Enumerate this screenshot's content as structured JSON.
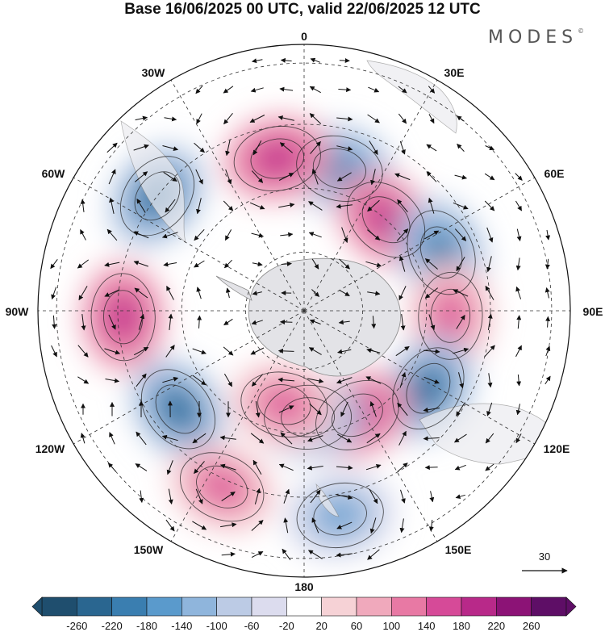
{
  "title": "Base 16/06/2025 00 UTC, valid 22/06/2025 12 UTC",
  "brand": "MODES",
  "brand_mark": "©",
  "longitude_labels": {
    "0": "0",
    "30E": "30E",
    "60E": "60E",
    "90E": "90E",
    "120E": "120E",
    "150E": "150E",
    "180": "180",
    "150W": "150W",
    "120W": "120W",
    "90W": "90W",
    "60W": "60W",
    "30W": "30W"
  },
  "vector_legend": {
    "value": "30"
  },
  "colorbar": {
    "ticks": [
      "-260",
      "-220",
      "-180",
      "-140",
      "-100",
      "-60",
      "-20",
      "20",
      "60",
      "100",
      "140",
      "180",
      "220",
      "260"
    ],
    "colors": [
      "#1f4e6e",
      "#2a6690",
      "#3a7eb0",
      "#5a9acc",
      "#8fb5dc",
      "#bccbe5",
      "#dcdcee",
      "#ffffff",
      "#f6d2d6",
      "#f0a9bc",
      "#e879a4",
      "#d64a98",
      "#b82989",
      "#8c1376",
      "#5e0e66"
    ]
  },
  "anomaly_centers": [
    {
      "lon": 14,
      "rad": 0.55,
      "value": -200
    },
    {
      "lon": -10,
      "rad": 0.58,
      "value": 190
    },
    {
      "lon": 42,
      "rad": 0.46,
      "value": 200
    },
    {
      "lon": 67,
      "rad": 0.56,
      "value": -220
    },
    {
      "lon": -52,
      "rad": 0.7,
      "value": -240
    },
    {
      "lon": 92,
      "rad": 0.55,
      "value": 150
    },
    {
      "lon": -92,
      "rad": 0.68,
      "value": 200
    },
    {
      "lon": 122,
      "rad": 0.55,
      "value": -240
    },
    {
      "lon": 153,
      "rad": 0.44,
      "value": 200
    },
    {
      "lon": 178,
      "rad": 0.4,
      "value": -200
    },
    {
      "lon": -168,
      "rad": 0.36,
      "value": 150
    },
    {
      "lon": -128,
      "rad": 0.6,
      "value": -230
    },
    {
      "lon": -155,
      "rad": 0.73,
      "value": 140
    },
    {
      "lon": 170,
      "rad": 0.78,
      "value": -160
    }
  ]
}
